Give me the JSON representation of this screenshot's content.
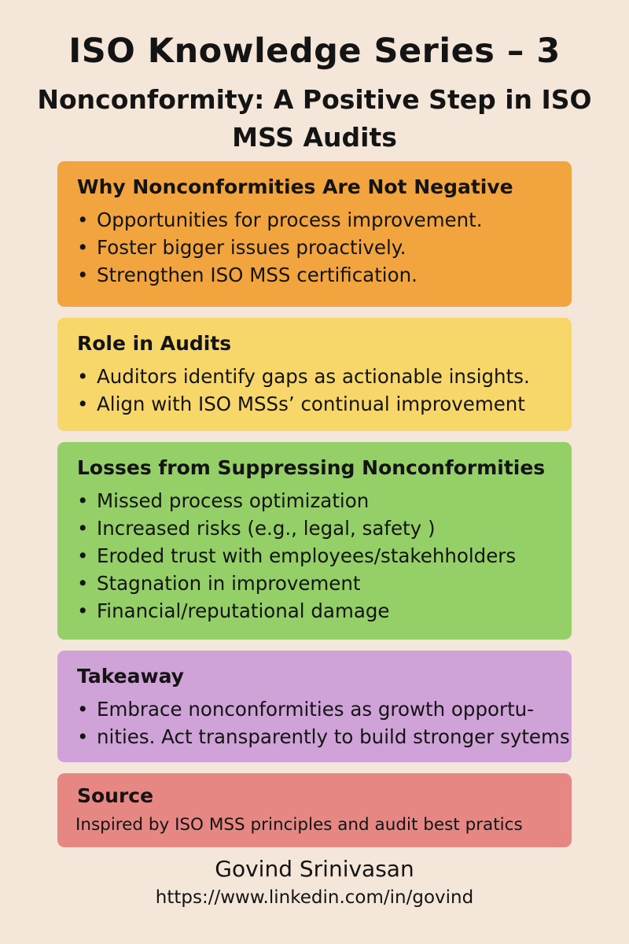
{
  "header": {
    "title": "ISO Knowledge Series – 3",
    "subtitle": "Nonconformity: A Positive Step in ISO MSS Audits"
  },
  "sections": [
    {
      "heading": "Why Nonconformities Are Not Negative",
      "color": "#f2a53f",
      "bullets": [
        "Opportunities for process improvement.",
        "Foster bigger issues proactively.",
        "Strengthen ISO MSS certification."
      ]
    },
    {
      "heading": "Role in Audits",
      "color": "#f7d66a",
      "bullets": [
        "Auditors identify gaps as actionable insights.",
        "Align with ISO MSSs’ continual improvement"
      ]
    },
    {
      "heading": "Losses from Suppressing Nonconformities",
      "color": "#94cf68",
      "bullets": [
        "Missed process optimization",
        "Increased risks (e.g., legal, safety )",
        "Eroded trust with employees/stakehholders",
        "Stagnation in improvement",
        "Financial/reputational damage"
      ]
    },
    {
      "heading": "Takeaway",
      "color": "#cfa2d8",
      "bullets": [
        "Embrace nonconformities as growth opportu-",
        "nities. Act transparently to build stronger sytems"
      ]
    }
  ],
  "source": {
    "heading": "Source",
    "color": "#e68784",
    "text": "Inspired by ISO MSS principles and audit best pratics"
  },
  "footer": {
    "author": "Govind Srinivasan",
    "url": "https://www.linkedin.com/in/govind"
  }
}
